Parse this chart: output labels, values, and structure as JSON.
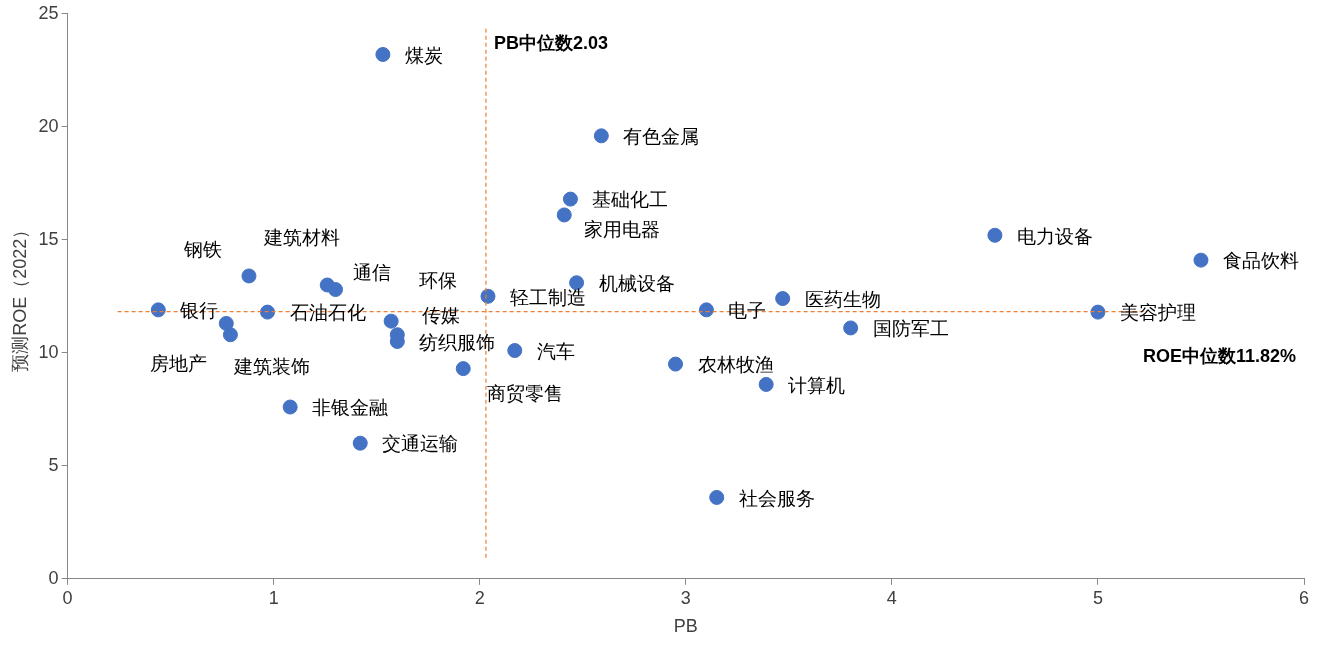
{
  "chart_data": {
    "type": "scatter",
    "xlabel": "PB",
    "ylabel": "预测ROE（2022）",
    "x": [
      1.53,
      2.59,
      2.44,
      2.41,
      4.5,
      5.5,
      0.88,
      1.26,
      1.3,
      2.47,
      2.04,
      3.47,
      0.44,
      0.97,
      3.1,
      5.0,
      1.57,
      0.77,
      3.8,
      1.6,
      0.79,
      1.6,
      2.17,
      1.92,
      2.95,
      3.39,
      1.08,
      1.42,
      3.15
    ],
    "series": [
      {
        "color": "#4472c4",
        "values": [
          23.2,
          19.6,
          16.8,
          16.1,
          15.2,
          14.1,
          13.4,
          13.0,
          12.8,
          13.1,
          12.5,
          12.4,
          11.9,
          11.8,
          11.9,
          11.8,
          11.4,
          11.3,
          11.1,
          10.8,
          10.8,
          10.5,
          10.1,
          9.3,
          9.5,
          8.6,
          7.6,
          6.0,
          3.6
        ]
      }
    ],
    "annotations": [
      {
        "text": "煤炭",
        "x": 1.53,
        "y": 23.2
      },
      {
        "text": "有色金属",
        "x": 2.59,
        "y": 19.6
      },
      {
        "text": "基础化工",
        "x": 2.44,
        "y": 16.8
      },
      {
        "text": "家用电器",
        "x": 2.41,
        "y": 16.1
      },
      {
        "text": "电力设备",
        "x": 4.5,
        "y": 15.2
      },
      {
        "text": "食品饮料",
        "x": 5.5,
        "y": 14.1
      },
      {
        "text": "钢铁",
        "x": 0.88,
        "y": 13.4
      },
      {
        "text": "建筑材料",
        "x": 1.26,
        "y": 13.0
      },
      {
        "text": "通信",
        "x": 1.3,
        "y": 12.8
      },
      {
        "text": "机械设备",
        "x": 2.47,
        "y": 13.1
      },
      {
        "text": "轻工制造",
        "x": 2.04,
        "y": 12.5
      },
      {
        "text": "医药生物",
        "x": 3.47,
        "y": 12.4
      },
      {
        "text": "银行",
        "x": 0.44,
        "y": 11.9
      },
      {
        "text": "石油石化",
        "x": 0.97,
        "y": 11.8
      },
      {
        "text": "电子",
        "x": 3.1,
        "y": 11.9
      },
      {
        "text": "美容护理",
        "x": 5.0,
        "y": 11.8
      },
      {
        "text": "环保",
        "x": 1.57,
        "y": 11.4
      },
      {
        "text": "房地产",
        "x": 0.77,
        "y": 11.3
      },
      {
        "text": "国防军工",
        "x": 3.8,
        "y": 11.1
      },
      {
        "text": "传媒",
        "x": 1.6,
        "y": 10.8
      },
      {
        "text": "建筑装饰",
        "x": 0.79,
        "y": 10.8
      },
      {
        "text": "纺织服饰",
        "x": 1.6,
        "y": 10.5
      },
      {
        "text": "汽车",
        "x": 2.17,
        "y": 10.1
      },
      {
        "text": "商贸零售",
        "x": 1.92,
        "y": 9.3
      },
      {
        "text": "农林牧渔",
        "x": 2.95,
        "y": 9.5
      },
      {
        "text": "计算机",
        "x": 3.39,
        "y": 8.6
      },
      {
        "text": "非银金融",
        "x": 1.08,
        "y": 7.6
      },
      {
        "text": "交通运输",
        "x": 1.42,
        "y": 6.0
      },
      {
        "text": "社会服务",
        "x": 3.15,
        "y": 3.6
      }
    ],
    "ref_lines": [
      {
        "axis": "x",
        "value": 2.03,
        "label": "PB中位数2.03",
        "color": "#ed7d31",
        "line_style": "dashed"
      },
      {
        "axis": "y",
        "value": 11.82,
        "label": "ROE中位数11.82%",
        "color": "#ed7d31",
        "line_style": "dashed"
      }
    ],
    "xlim": [
      0,
      6
    ],
    "xticks": [
      0,
      1,
      2,
      3,
      4,
      5,
      6
    ],
    "ylim": [
      0,
      25
    ],
    "yticks": [
      0,
      5,
      10,
      15,
      20,
      25
    ],
    "grid": false,
    "legend": false,
    "marker": "circle"
  }
}
